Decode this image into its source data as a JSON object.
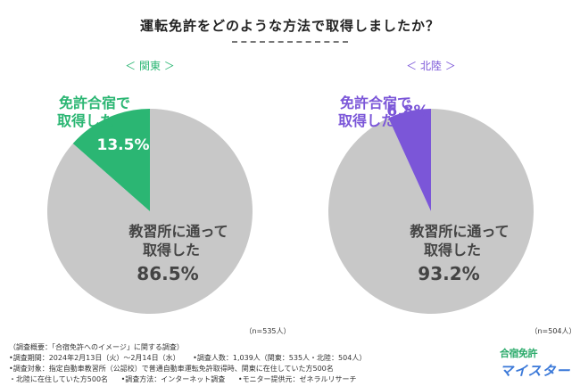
{
  "title": "運転免許をどのような方法で取得しましたか？",
  "chart_data": [
    {
      "type": "pie",
      "region": "＜ 関東 ＞",
      "n_label": "（n=535人）",
      "slices": [
        {
          "line1": "免許合宿で",
          "line2": "取得した",
          "value": 13.5,
          "color": "#2bb673"
        },
        {
          "line1": "教習所に通って",
          "line2": "取得した",
          "value": 86.5,
          "color": "#c8c8c8"
        }
      ],
      "region_color": "#2bb673"
    },
    {
      "type": "pie",
      "region": "＜ 北陸 ＞",
      "n_label": "（n=504人）",
      "slices": [
        {
          "line1": "免許合宿で",
          "line2": "取得した",
          "value": 6.8,
          "color": "#7b56d8"
        },
        {
          "line1": "教習所に通って",
          "line2": "取得した",
          "value": 93.2,
          "color": "#c8c8c8"
        }
      ],
      "region_color": "#7b56d8"
    }
  ],
  "footer": {
    "line1": "（調査概要：「合宿免許へのイメージ」に関する調査）",
    "line2a": "•調査期間：2024年2月13日（火）～2月14日（水）",
    "line2b": "•調査人数：1,039人（関東：535人・北陸：504人）",
    "line3": "•調査対象：指定自動車教習所（公認校）で普通自動車運転免許取得時、関東に在住していた方500名",
    "line4a": "・北陸に在住していた方500名",
    "line4b": "•調査方法：インターネット調査",
    "line4c": "•モニター提供元：ゼネラルリサーチ"
  },
  "logo": {
    "top": "合宿免許",
    "bottom": "マイスター"
  }
}
